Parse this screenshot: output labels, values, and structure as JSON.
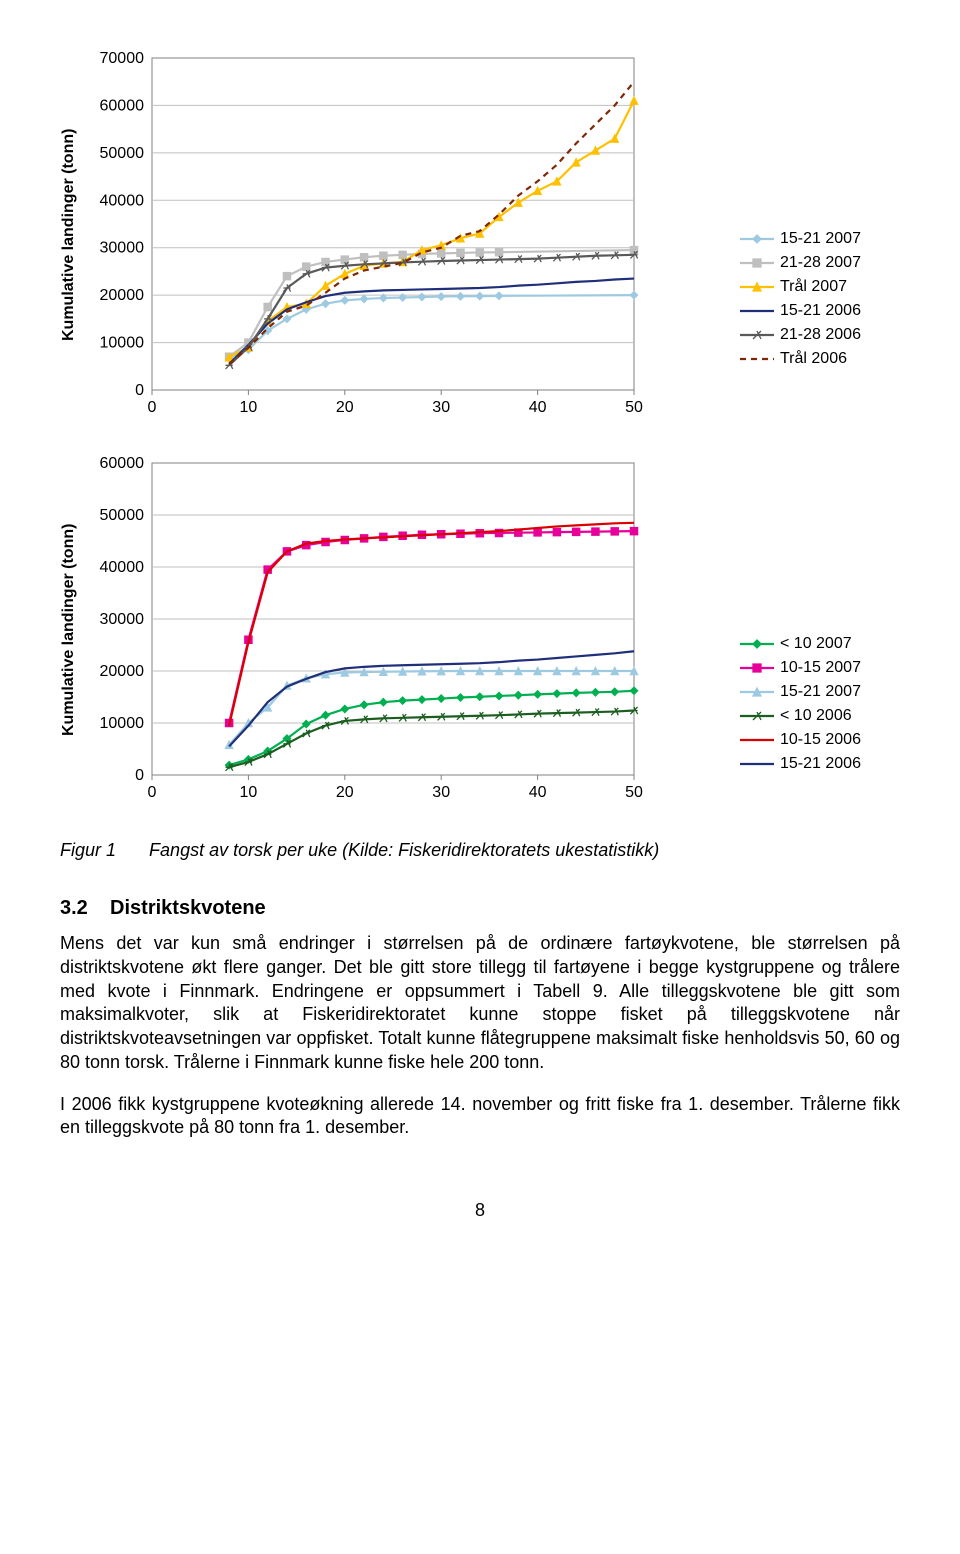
{
  "chart1": {
    "type": "line",
    "ylabel": "Kumulative landinger (tonn)",
    "ylim": [
      0,
      70000
    ],
    "ytick_step": 10000,
    "xlim": [
      0,
      50
    ],
    "xtick_step": 10,
    "xticks": [
      0,
      10,
      20,
      30,
      40,
      50
    ],
    "background_color": "#ffffff",
    "grid_color": "#bfbfbf",
    "border_color": "#808080",
    "label_fontsize": 16,
    "tick_fontsize": 16,
    "series": [
      {
        "label": "15-21 2007",
        "color": "#9ecae1",
        "marker": "diamond",
        "x": [
          8,
          10,
          12,
          14,
          16,
          18,
          20,
          22,
          24,
          26,
          28,
          30,
          32,
          34,
          36,
          50
        ],
        "y": [
          6800,
          8500,
          12500,
          15000,
          17000,
          18200,
          18900,
          19200,
          19400,
          19500,
          19600,
          19700,
          19750,
          19800,
          19850,
          20000
        ]
      },
      {
        "label": "21-28 2007",
        "color": "#bfbfbf",
        "marker": "square",
        "x": [
          8,
          10,
          12,
          14,
          16,
          18,
          20,
          22,
          24,
          26,
          28,
          30,
          32,
          34,
          36,
          50
        ],
        "y": [
          7000,
          10000,
          17500,
          24000,
          26000,
          27000,
          27500,
          28000,
          28300,
          28500,
          28700,
          28800,
          28900,
          29000,
          29050,
          29500
        ]
      },
      {
        "label": "Trål 2007",
        "color": "#ffc000",
        "marker": "triangle",
        "x": [
          8,
          10,
          12,
          14,
          16,
          18,
          20,
          22,
          24,
          26,
          28,
          30,
          32,
          34,
          36,
          38,
          40,
          42,
          44,
          46,
          48,
          50
        ],
        "y": [
          6900,
          9000,
          14500,
          17500,
          18200,
          22000,
          24500,
          26200,
          26700,
          27000,
          29500,
          30500,
          32000,
          33000,
          36500,
          39500,
          42000,
          44000,
          48000,
          50500,
          53000,
          61000
        ]
      },
      {
        "label": "15-21 2006",
        "color": "#1f2f7a",
        "marker": "none",
        "x": [
          8,
          10,
          12,
          14,
          16,
          18,
          20,
          22,
          24,
          26,
          28,
          30,
          32,
          34,
          36,
          38,
          40,
          42,
          44,
          46,
          48,
          50
        ],
        "y": [
          5500,
          9500,
          14000,
          17000,
          18500,
          19800,
          20500,
          20800,
          21000,
          21100,
          21200,
          21300,
          21400,
          21500,
          21700,
          22000,
          22200,
          22500,
          22800,
          23000,
          23300,
          23500
        ]
      },
      {
        "label": "21-28 2006",
        "color": "#595959",
        "marker": "star",
        "x": [
          8,
          10,
          12,
          14,
          16,
          18,
          20,
          22,
          24,
          26,
          28,
          30,
          32,
          34,
          36,
          38,
          40,
          42,
          44,
          46,
          48,
          50
        ],
        "y": [
          5200,
          9000,
          15000,
          21500,
          24500,
          25800,
          26200,
          26500,
          26700,
          26900,
          27050,
          27200,
          27300,
          27400,
          27500,
          27600,
          27700,
          27900,
          28100,
          28300,
          28400,
          28500
        ]
      },
      {
        "label": "Trål 2006",
        "color": "#7f2704",
        "marker": "none",
        "dash": "6,5",
        "x": [
          8,
          10,
          12,
          14,
          16,
          18,
          20,
          22,
          24,
          26,
          28,
          30,
          32,
          34,
          36,
          38,
          40,
          42,
          44,
          46,
          48,
          50
        ],
        "y": [
          5500,
          8900,
          13000,
          16500,
          17800,
          20500,
          23500,
          25200,
          26000,
          26800,
          29000,
          30000,
          32500,
          33500,
          37000,
          41000,
          44000,
          47500,
          52000,
          56000,
          60000,
          65000
        ]
      }
    ]
  },
  "chart2": {
    "type": "line",
    "ylabel": "Kumulative landinger (tonn)",
    "ylim": [
      0,
      60000
    ],
    "ytick_step": 10000,
    "xlim": [
      0,
      50
    ],
    "xtick_step": 10,
    "xticks": [
      0,
      10,
      20,
      30,
      40,
      50
    ],
    "background_color": "#ffffff",
    "grid_color": "#bfbfbf",
    "border_color": "#808080",
    "label_fontsize": 16,
    "tick_fontsize": 16,
    "series": [
      {
        "label": "< 10 2007",
        "color": "#00b050",
        "marker": "diamond",
        "x": [
          8,
          10,
          12,
          14,
          16,
          18,
          20,
          22,
          24,
          26,
          28,
          30,
          32,
          34,
          36,
          38,
          40,
          42,
          44,
          46,
          48,
          50
        ],
        "y": [
          1900,
          3000,
          4600,
          7000,
          9800,
          11500,
          12700,
          13500,
          14000,
          14300,
          14500,
          14700,
          14900,
          15050,
          15200,
          15350,
          15500,
          15650,
          15800,
          15900,
          16000,
          16200
        ]
      },
      {
        "label": "10-15 2007",
        "color": "#e60099",
        "marker": "square",
        "x": [
          8,
          10,
          12,
          14,
          16,
          18,
          20,
          22,
          24,
          26,
          28,
          30,
          32,
          34,
          36,
          38,
          40,
          42,
          44,
          46,
          48,
          50
        ],
        "y": [
          10000,
          26000,
          39500,
          43000,
          44200,
          44800,
          45200,
          45500,
          45800,
          46000,
          46200,
          46300,
          46400,
          46500,
          46550,
          46600,
          46650,
          46700,
          46750,
          46800,
          46850,
          46900
        ]
      },
      {
        "label": "15-21 2007",
        "color": "#9ecae1",
        "marker": "triangle",
        "x": [
          8,
          10,
          12,
          14,
          16,
          18,
          20,
          22,
          24,
          26,
          28,
          30,
          32,
          34,
          36,
          38,
          40,
          42,
          44,
          46,
          48,
          50
        ],
        "y": [
          5800,
          10000,
          13000,
          17200,
          18600,
          19400,
          19700,
          19800,
          19850,
          19900,
          19950,
          19980,
          20000,
          20000,
          20000,
          20000,
          20000,
          20000,
          20000,
          20000,
          20000,
          20000
        ]
      },
      {
        "label": "< 10 2006",
        "color": "#1c5e20",
        "marker": "star",
        "x": [
          8,
          10,
          12,
          14,
          16,
          18,
          20,
          22,
          24,
          26,
          28,
          30,
          32,
          34,
          36,
          38,
          40,
          42,
          44,
          46,
          48,
          50
        ],
        "y": [
          1500,
          2500,
          4000,
          6000,
          8000,
          9500,
          10400,
          10700,
          10900,
          11000,
          11100,
          11200,
          11300,
          11400,
          11500,
          11650,
          11800,
          11900,
          12000,
          12100,
          12200,
          12400
        ]
      },
      {
        "label": "10-15 2006",
        "color": "#d90000",
        "marker": "none",
        "width": 2.2,
        "x": [
          8,
          10,
          12,
          14,
          16,
          18,
          20,
          22,
          24,
          26,
          28,
          30,
          32,
          34,
          36,
          38,
          40,
          42,
          44,
          46,
          48,
          50
        ],
        "y": [
          9500,
          25500,
          39000,
          43000,
          44500,
          45000,
          45300,
          45500,
          45700,
          45900,
          46100,
          46300,
          46500,
          46700,
          46900,
          47200,
          47500,
          47800,
          48000,
          48200,
          48400,
          48500
        ]
      },
      {
        "label": "15-21 2006",
        "color": "#1f2f7a",
        "marker": "none",
        "width": 2.2,
        "x": [
          8,
          10,
          12,
          14,
          16,
          18,
          20,
          22,
          24,
          26,
          28,
          30,
          32,
          34,
          36,
          38,
          40,
          42,
          44,
          46,
          48,
          50
        ],
        "y": [
          5500,
          9500,
          14000,
          17000,
          18500,
          19800,
          20500,
          20800,
          21000,
          21100,
          21200,
          21300,
          21400,
          21500,
          21700,
          22000,
          22200,
          22500,
          22800,
          23100,
          23400,
          23800
        ]
      }
    ]
  },
  "figure": {
    "number": "Figur 1",
    "caption": "Fangst av torsk per uke (Kilde: Fiskeridirektoratets ukestatistikk)"
  },
  "section": {
    "heading_num": "3.2",
    "heading": "Distriktskvotene"
  },
  "paragraphs": {
    "p1": "Mens det var kun små endringer i størrelsen på de ordinære fartøykvotene, ble størrelsen på distriktskvotene økt flere ganger. Det ble gitt store tillegg til fartøyene i begge kystgruppene og trålere med kvote i Finnmark. Endringene er oppsummert i Tabell 9. Alle tilleggskvotene ble gitt som maksimalkvoter, slik at Fiskeridirektoratet kunne stoppe fisket på tilleggskvotene når distriktskvoteavsetningen var oppfisket. Totalt kunne flåtegruppene maksimalt fiske henholdsvis 50, 60 og 80 tonn torsk. Trålerne i Finnmark kunne fiske hele 200 tonn.",
    "p2": "I 2006 fikk kystgruppene kvoteøkning allerede 14. november og fritt fiske fra 1. desember. Trålerne fikk en tilleggskvote på 80 tonn fra 1. desember."
  },
  "page_number": "8"
}
